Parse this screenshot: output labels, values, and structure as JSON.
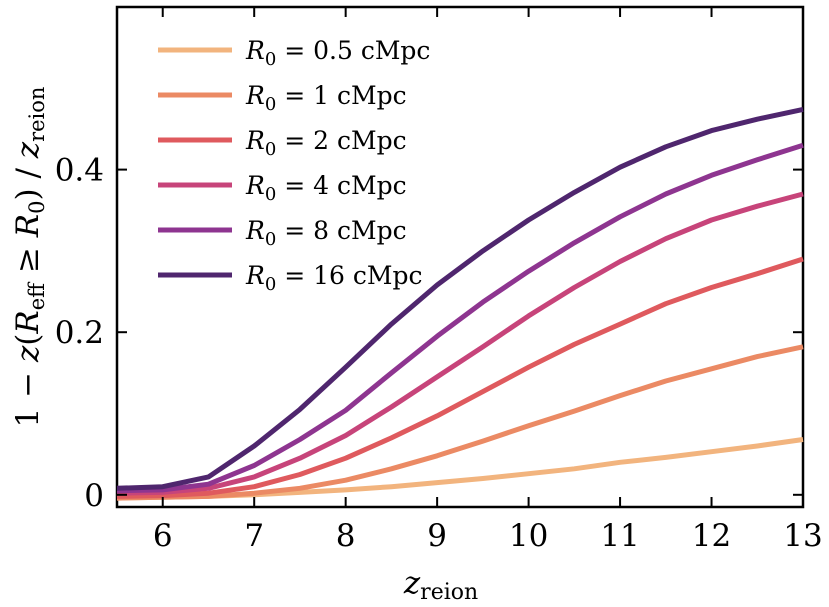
{
  "chart_data": {
    "type": "line",
    "xlabel_main": "z",
    "xlabel_sub": "reion",
    "ylabel": "1 − z(R_eff ≥ R_0) / z_reion",
    "ylabel_parts": {
      "one_minus": "1 − ",
      "z": "z",
      "open": "(",
      "R": "R",
      "eff": "eff",
      "geq": " ≥ ",
      "R2": "R",
      "zero": "0",
      "close": ") / ",
      "z2": "z",
      "reion": "reion"
    },
    "xlim": [
      5.5,
      13
    ],
    "ylim": [
      -0.015,
      0.6
    ],
    "xticks": [
      6,
      7,
      8,
      9,
      10,
      11,
      12,
      13
    ],
    "xtick_labels": [
      "6",
      "7",
      "8",
      "9",
      "10",
      "11",
      "12",
      "13"
    ],
    "yticks": [
      0,
      0.2,
      0.4
    ],
    "ytick_labels": [
      "0",
      "0.2",
      "0.4"
    ],
    "legend_location": "top-left",
    "x": [
      5.5,
      6.0,
      6.5,
      7.0,
      7.5,
      8.0,
      8.5,
      9.0,
      9.5,
      10.0,
      10.5,
      11.0,
      11.5,
      12.0,
      12.5,
      13.0
    ],
    "series": [
      {
        "name": "R_0 = 0.5 cMpc",
        "label_prefix": "R",
        "label_sub": "0",
        "label_rest": " = 0.5 cMpc",
        "color": "#f2b47e",
        "values": [
          -0.004,
          -0.003,
          -0.002,
          0.0,
          0.003,
          0.006,
          0.01,
          0.015,
          0.02,
          0.026,
          0.032,
          0.04,
          0.046,
          0.053,
          0.06,
          0.068
        ]
      },
      {
        "name": "R_0 = 1 cMpc",
        "label_prefix": "R",
        "label_sub": "0",
        "label_rest": " = 1 cMpc",
        "color": "#eb8a64",
        "values": [
          -0.004,
          -0.003,
          -0.002,
          0.002,
          0.008,
          0.018,
          0.032,
          0.048,
          0.066,
          0.085,
          0.103,
          0.122,
          0.14,
          0.155,
          0.17,
          0.182
        ]
      },
      {
        "name": "R_0 = 2 cMpc",
        "label_prefix": "R",
        "label_sub": "0",
        "label_rest": " = 2 cMpc",
        "color": "#df5a5e",
        "values": [
          -0.002,
          -0.001,
          0.002,
          0.01,
          0.025,
          0.045,
          0.07,
          0.097,
          0.127,
          0.157,
          0.185,
          0.21,
          0.235,
          0.255,
          0.272,
          0.29
        ]
      },
      {
        "name": "R_0 = 4 cMpc",
        "label_prefix": "R",
        "label_sub": "0",
        "label_rest": " = 4 cMpc",
        "color": "#c7447a",
        "values": [
          0.002,
          0.003,
          0.008,
          0.022,
          0.045,
          0.073,
          0.108,
          0.145,
          0.182,
          0.22,
          0.255,
          0.287,
          0.315,
          0.338,
          0.355,
          0.37
        ]
      },
      {
        "name": "R_0 = 8 cMpc",
        "label_prefix": "R",
        "label_sub": "0",
        "label_rest": " = 8 cMpc",
        "color": "#8e3590",
        "values": [
          0.005,
          0.006,
          0.013,
          0.036,
          0.068,
          0.104,
          0.15,
          0.195,
          0.237,
          0.275,
          0.31,
          0.342,
          0.37,
          0.393,
          0.412,
          0.43
        ]
      },
      {
        "name": "R_0 = 16 cMpc",
        "label_prefix": "R",
        "label_sub": "0",
        "label_rest": " = 16 cMpc",
        "color": "#4f266e",
        "values": [
          0.008,
          0.01,
          0.022,
          0.06,
          0.105,
          0.157,
          0.21,
          0.258,
          0.3,
          0.338,
          0.372,
          0.403,
          0.428,
          0.448,
          0.462,
          0.474
        ]
      }
    ]
  }
}
